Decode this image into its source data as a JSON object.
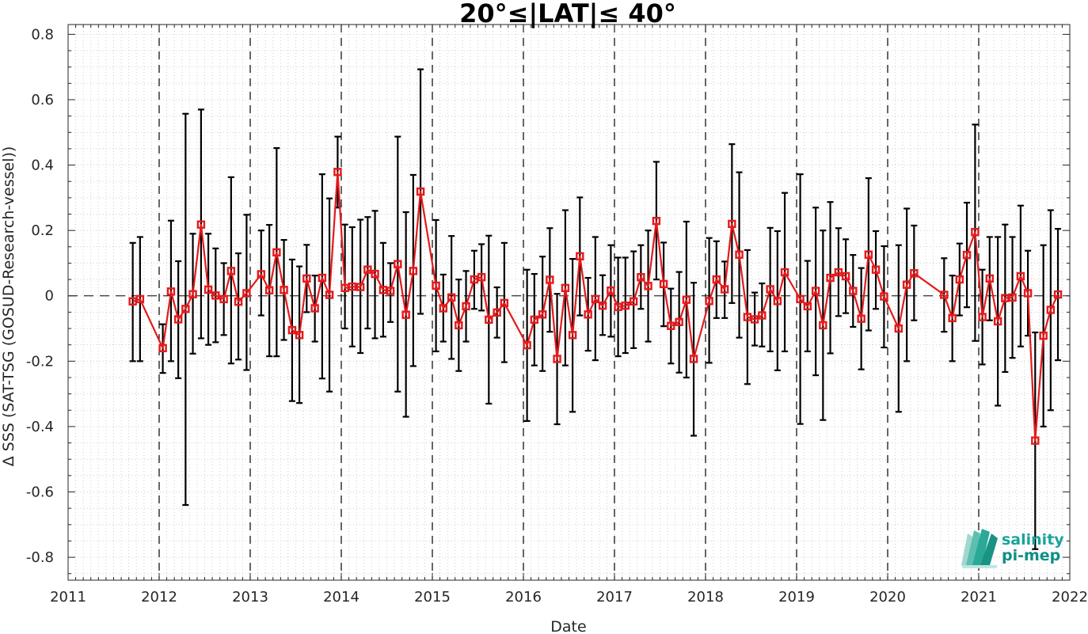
{
  "chart_data": {
    "type": "line",
    "title": "20°≤|LAT|≤ 40°",
    "xlabel": "Date",
    "ylabel": "Δ SSS (SAT-TSG (GOSUD-Research-vessel))",
    "xlim": [
      2011,
      2022
    ],
    "ylim": [
      -0.87,
      0.83
    ],
    "x_ticks": [
      "2011",
      "2012",
      "2013",
      "2014",
      "2015",
      "2016",
      "2017",
      "2018",
      "2019",
      "2020",
      "2021",
      "2022"
    ],
    "y_ticks": [
      "0.8",
      "0.6",
      "0.4",
      "0.2",
      "0",
      "-0.2",
      "-0.4",
      "-0.6",
      "-0.8"
    ],
    "year_lines": [
      2012,
      2013,
      2014,
      2015,
      2016,
      2017,
      2018,
      2019,
      2020,
      2021
    ],
    "zero_line": 0,
    "grid": "minor-dotted",
    "series": [
      {
        "color": "#e31a1c",
        "marker": "square",
        "errorbar_color": "#000000",
        "points": [
          {
            "x": 2011.71,
            "y": -0.017,
            "lo": -0.2,
            "hi": 0.162
          },
          {
            "x": 2011.79,
            "y": -0.01,
            "lo": -0.2,
            "hi": 0.18
          },
          {
            "x": 2012.04,
            "y": -0.16,
            "lo": -0.236,
            "hi": -0.087
          },
          {
            "x": 2012.13,
            "y": 0.013,
            "lo": -0.2,
            "hi": 0.23
          },
          {
            "x": 2012.21,
            "y": -0.072,
            "lo": -0.252,
            "hi": 0.106
          },
          {
            "x": 2012.29,
            "y": -0.04,
            "lo": -0.64,
            "hi": 0.557
          },
          {
            "x": 2012.37,
            "y": 0.005,
            "lo": -0.177,
            "hi": 0.19
          },
          {
            "x": 2012.46,
            "y": 0.218,
            "lo": -0.13,
            "hi": 0.57
          },
          {
            "x": 2012.54,
            "y": 0.019,
            "lo": -0.15,
            "hi": 0.19
          },
          {
            "x": 2012.62,
            "y": 0.001,
            "lo": -0.142,
            "hi": 0.145
          },
          {
            "x": 2012.71,
            "y": -0.01,
            "lo": -0.12,
            "hi": 0.1
          },
          {
            "x": 2012.79,
            "y": 0.076,
            "lo": -0.207,
            "hi": 0.363
          },
          {
            "x": 2012.87,
            "y": -0.018,
            "lo": -0.195,
            "hi": 0.13
          },
          {
            "x": 2012.96,
            "y": 0.008,
            "lo": -0.227,
            "hi": 0.248
          },
          {
            "x": 2013.12,
            "y": 0.066,
            "lo": -0.06,
            "hi": 0.2
          },
          {
            "x": 2013.21,
            "y": 0.017,
            "lo": -0.185,
            "hi": 0.217
          },
          {
            "x": 2013.29,
            "y": 0.133,
            "lo": -0.185,
            "hi": 0.452
          },
          {
            "x": 2013.37,
            "y": 0.018,
            "lo": -0.135,
            "hi": 0.171
          },
          {
            "x": 2013.46,
            "y": -0.105,
            "lo": -0.322,
            "hi": 0.111
          },
          {
            "x": 2013.54,
            "y": -0.12,
            "lo": -0.328,
            "hi": 0.09
          },
          {
            "x": 2013.62,
            "y": 0.053,
            "lo": -0.05,
            "hi": 0.156
          },
          {
            "x": 2013.71,
            "y": -0.038,
            "lo": -0.14,
            "hi": 0.062
          },
          {
            "x": 2013.79,
            "y": 0.055,
            "lo": -0.253,
            "hi": 0.372
          },
          {
            "x": 2013.87,
            "y": 0.003,
            "lo": -0.293,
            "hi": 0.298
          },
          {
            "x": 2013.96,
            "y": 0.379,
            "lo": 0.27,
            "hi": 0.487
          },
          {
            "x": 2014.04,
            "y": 0.024,
            "lo": -0.1,
            "hi": 0.218
          },
          {
            "x": 2014.12,
            "y": 0.028,
            "lo": -0.155,
            "hi": 0.21
          },
          {
            "x": 2014.21,
            "y": 0.027,
            "lo": -0.175,
            "hi": 0.233
          },
          {
            "x": 2014.29,
            "y": 0.08,
            "lo": -0.1,
            "hi": 0.241
          },
          {
            "x": 2014.37,
            "y": 0.067,
            "lo": -0.13,
            "hi": 0.26
          },
          {
            "x": 2014.46,
            "y": 0.018,
            "lo": -0.125,
            "hi": 0.162
          },
          {
            "x": 2014.54,
            "y": 0.015,
            "lo": -0.08,
            "hi": 0.1
          },
          {
            "x": 2014.62,
            "y": 0.097,
            "lo": -0.293,
            "hi": 0.487
          },
          {
            "x": 2014.71,
            "y": -0.058,
            "lo": -0.37,
            "hi": 0.256
          },
          {
            "x": 2014.79,
            "y": 0.076,
            "lo": -0.215,
            "hi": 0.37
          },
          {
            "x": 2014.87,
            "y": 0.319,
            "lo": -0.055,
            "hi": 0.693
          },
          {
            "x": 2015.04,
            "y": 0.031,
            "lo": -0.17,
            "hi": 0.232
          },
          {
            "x": 2015.12,
            "y": -0.038,
            "lo": -0.14,
            "hi": 0.065
          },
          {
            "x": 2015.21,
            "y": -0.005,
            "lo": -0.193,
            "hi": 0.183
          },
          {
            "x": 2015.29,
            "y": -0.09,
            "lo": -0.23,
            "hi": 0.05
          },
          {
            "x": 2015.37,
            "y": -0.032,
            "lo": -0.14,
            "hi": 0.076
          },
          {
            "x": 2015.46,
            "y": 0.05,
            "lo": -0.04,
            "hi": 0.138
          },
          {
            "x": 2015.54,
            "y": 0.057,
            "lo": -0.045,
            "hi": 0.158
          },
          {
            "x": 2015.62,
            "y": -0.073,
            "lo": -0.33,
            "hi": 0.184
          },
          {
            "x": 2015.71,
            "y": -0.051,
            "lo": -0.128,
            "hi": 0.026
          },
          {
            "x": 2015.79,
            "y": -0.022,
            "lo": -0.203,
            "hi": 0.162
          },
          {
            "x": 2016.04,
            "y": -0.151,
            "lo": -0.383,
            "hi": 0.08
          },
          {
            "x": 2016.12,
            "y": -0.073,
            "lo": -0.213,
            "hi": 0.067
          },
          {
            "x": 2016.21,
            "y": -0.057,
            "lo": -0.23,
            "hi": 0.12
          },
          {
            "x": 2016.29,
            "y": 0.049,
            "lo": -0.11,
            "hi": 0.207
          },
          {
            "x": 2016.37,
            "y": -0.193,
            "lo": -0.393,
            "hi": 0.006
          },
          {
            "x": 2016.46,
            "y": 0.024,
            "lo": -0.213,
            "hi": 0.262
          },
          {
            "x": 2016.54,
            "y": -0.12,
            "lo": -0.355,
            "hi": 0.113
          },
          {
            "x": 2016.62,
            "y": 0.121,
            "lo": -0.06,
            "hi": 0.301
          },
          {
            "x": 2016.71,
            "y": -0.057,
            "lo": -0.168,
            "hi": 0.055
          },
          {
            "x": 2016.79,
            "y": -0.01,
            "lo": -0.197,
            "hi": 0.18
          },
          {
            "x": 2016.87,
            "y": -0.03,
            "lo": -0.12,
            "hi": 0.063
          },
          {
            "x": 2016.96,
            "y": 0.016,
            "lo": -0.125,
            "hi": 0.155
          },
          {
            "x": 2017.04,
            "y": -0.034,
            "lo": -0.185,
            "hi": 0.117
          },
          {
            "x": 2017.12,
            "y": -0.03,
            "lo": -0.175,
            "hi": 0.117
          },
          {
            "x": 2017.21,
            "y": -0.017,
            "lo": -0.16,
            "hi": 0.136
          },
          {
            "x": 2017.29,
            "y": 0.057,
            "lo": -0.04,
            "hi": 0.155
          },
          {
            "x": 2017.37,
            "y": 0.03,
            "lo": -0.14,
            "hi": 0.2
          },
          {
            "x": 2017.46,
            "y": 0.229,
            "lo": 0.05,
            "hi": 0.41
          },
          {
            "x": 2017.54,
            "y": 0.036,
            "lo": -0.093,
            "hi": 0.163
          },
          {
            "x": 2017.62,
            "y": -0.092,
            "lo": -0.207,
            "hi": 0.022
          },
          {
            "x": 2017.71,
            "y": -0.08,
            "lo": -0.235,
            "hi": 0.073
          },
          {
            "x": 2017.79,
            "y": -0.012,
            "lo": -0.25,
            "hi": 0.227
          },
          {
            "x": 2017.87,
            "y": -0.193,
            "lo": -0.428,
            "hi": 0.04
          },
          {
            "x": 2018.04,
            "y": -0.016,
            "lo": -0.205,
            "hi": 0.177
          },
          {
            "x": 2018.12,
            "y": 0.05,
            "lo": -0.068,
            "hi": 0.167
          },
          {
            "x": 2018.21,
            "y": 0.02,
            "lo": -0.068,
            "hi": 0.105
          },
          {
            "x": 2018.29,
            "y": 0.22,
            "lo": -0.022,
            "hi": 0.464
          },
          {
            "x": 2018.37,
            "y": 0.126,
            "lo": -0.128,
            "hi": 0.378
          },
          {
            "x": 2018.46,
            "y": -0.065,
            "lo": -0.27,
            "hi": 0.14
          },
          {
            "x": 2018.54,
            "y": -0.072,
            "lo": -0.152,
            "hi": 0.01
          },
          {
            "x": 2018.62,
            "y": -0.06,
            "lo": -0.155,
            "hi": 0.038
          },
          {
            "x": 2018.71,
            "y": 0.02,
            "lo": -0.17,
            "hi": 0.208
          },
          {
            "x": 2018.79,
            "y": -0.016,
            "lo": -0.228,
            "hi": 0.198
          },
          {
            "x": 2018.87,
            "y": 0.072,
            "lo": -0.17,
            "hi": 0.315
          },
          {
            "x": 2019.04,
            "y": -0.01,
            "lo": -0.392,
            "hi": 0.372
          },
          {
            "x": 2019.12,
            "y": -0.032,
            "lo": -0.17,
            "hi": 0.107
          },
          {
            "x": 2019.21,
            "y": 0.015,
            "lo": -0.243,
            "hi": 0.27
          },
          {
            "x": 2019.29,
            "y": -0.09,
            "lo": -0.38,
            "hi": 0.2
          },
          {
            "x": 2019.37,
            "y": 0.055,
            "lo": -0.176,
            "hi": 0.287
          },
          {
            "x": 2019.46,
            "y": 0.072,
            "lo": -0.062,
            "hi": 0.207
          },
          {
            "x": 2019.54,
            "y": 0.06,
            "lo": -0.053,
            "hi": 0.173
          },
          {
            "x": 2019.62,
            "y": 0.015,
            "lo": -0.095,
            "hi": 0.125
          },
          {
            "x": 2019.71,
            "y": -0.07,
            "lo": -0.225,
            "hi": 0.085
          },
          {
            "x": 2019.79,
            "y": 0.126,
            "lo": -0.106,
            "hi": 0.36
          },
          {
            "x": 2019.87,
            "y": 0.08,
            "lo": -0.04,
            "hi": 0.198
          },
          {
            "x": 2019.96,
            "y": -0.002,
            "lo": -0.158,
            "hi": 0.152
          },
          {
            "x": 2020.12,
            "y": -0.1,
            "lo": -0.355,
            "hi": 0.155
          },
          {
            "x": 2020.21,
            "y": 0.034,
            "lo": -0.2,
            "hi": 0.267
          },
          {
            "x": 2020.29,
            "y": 0.069,
            "lo": -0.075,
            "hi": 0.215
          },
          {
            "x": 2020.62,
            "y": 0.003,
            "lo": -0.11,
            "hi": 0.115
          },
          {
            "x": 2020.71,
            "y": -0.068,
            "lo": -0.2,
            "hi": 0.062
          },
          {
            "x": 2020.79,
            "y": 0.05,
            "lo": -0.06,
            "hi": 0.16
          },
          {
            "x": 2020.87,
            "y": 0.125,
            "lo": -0.035,
            "hi": 0.285
          },
          {
            "x": 2020.96,
            "y": 0.195,
            "lo": -0.138,
            "hi": 0.524
          },
          {
            "x": 2021.04,
            "y": -0.065,
            "lo": -0.21,
            "hi": 0.08
          },
          {
            "x": 2021.12,
            "y": 0.053,
            "lo": -0.075,
            "hi": 0.18
          },
          {
            "x": 2021.21,
            "y": -0.078,
            "lo": -0.336,
            "hi": 0.18
          },
          {
            "x": 2021.29,
            "y": -0.007,
            "lo": -0.233,
            "hi": 0.218
          },
          {
            "x": 2021.37,
            "y": -0.005,
            "lo": -0.19,
            "hi": 0.18
          },
          {
            "x": 2021.46,
            "y": 0.06,
            "lo": -0.155,
            "hi": 0.276
          },
          {
            "x": 2021.54,
            "y": 0.008,
            "lo": -0.122,
            "hi": 0.138
          },
          {
            "x": 2021.62,
            "y": -0.443,
            "lo": -0.775,
            "hi": -0.112
          },
          {
            "x": 2021.71,
            "y": -0.122,
            "lo": -0.4,
            "hi": 0.155
          },
          {
            "x": 2021.79,
            "y": -0.043,
            "lo": -0.35,
            "hi": 0.262
          },
          {
            "x": 2021.87,
            "y": 0.004,
            "lo": -0.197,
            "hi": 0.205
          }
        ]
      }
    ]
  },
  "logo": {
    "line1": "salinity",
    "line2": "pi-mep",
    "color1": "#1aa39a",
    "color2": "#0e8f86"
  },
  "colors": {
    "line": "#e31a1c",
    "errorbar": "#000000",
    "axis": "#262626",
    "grid": "#cfcfcf"
  }
}
